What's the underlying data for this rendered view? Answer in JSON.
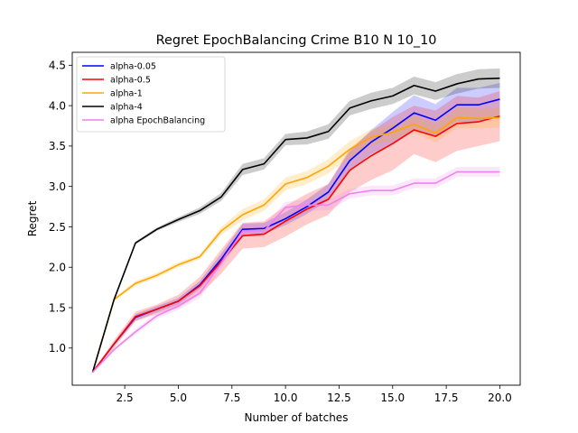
{
  "chart_data": {
    "type": "line",
    "title": "Regret EpochBalancing Crime B10 N 10_10",
    "xlabel": "Number of batches",
    "ylabel": "Regret",
    "xlim": [
      0.05,
      20.95
    ],
    "ylim": [
      0.54,
      4.66
    ],
    "xticks": [
      2.5,
      5.0,
      7.5,
      10.0,
      12.5,
      15.0,
      17.5,
      20.0
    ],
    "yticks": [
      1.0,
      1.5,
      2.0,
      2.5,
      3.0,
      3.5,
      4.0,
      4.5
    ],
    "grid": false,
    "legend_position": "upper-left",
    "x": [
      1,
      2,
      3,
      4,
      5,
      6,
      7,
      8,
      9,
      10,
      11,
      12,
      13,
      14,
      15,
      16,
      17,
      18,
      19,
      20
    ],
    "series": [
      {
        "name": "alpha-0.05",
        "color": "#0000ff",
        "values": [
          0.7,
          1.05,
          1.38,
          1.48,
          1.58,
          1.78,
          2.1,
          2.47,
          2.48,
          2.6,
          2.75,
          2.93,
          3.32,
          3.55,
          3.72,
          3.91,
          3.82,
          4.01,
          4.01,
          4.08
        ],
        "lower": [
          0.7,
          1.03,
          1.34,
          1.44,
          1.54,
          1.73,
          2.03,
          2.4,
          2.41,
          2.52,
          2.66,
          2.83,
          3.2,
          3.4,
          3.52,
          3.69,
          3.62,
          3.8,
          3.8,
          3.88
        ],
        "upper": [
          0.7,
          1.07,
          1.42,
          1.52,
          1.62,
          1.83,
          2.17,
          2.54,
          2.55,
          2.68,
          2.84,
          3.03,
          3.44,
          3.7,
          3.92,
          4.13,
          4.02,
          4.22,
          4.22,
          4.28
        ]
      },
      {
        "name": "alpha-0.5",
        "color": "#ff0000",
        "values": [
          0.7,
          1.05,
          1.39,
          1.48,
          1.58,
          1.77,
          2.07,
          2.39,
          2.41,
          2.57,
          2.72,
          2.84,
          3.2,
          3.38,
          3.53,
          3.7,
          3.62,
          3.78,
          3.8,
          3.87
        ],
        "lower": [
          0.7,
          1.0,
          1.33,
          1.42,
          1.5,
          1.66,
          1.92,
          2.23,
          2.25,
          2.38,
          2.53,
          2.65,
          2.93,
          3.08,
          3.2,
          3.4,
          3.3,
          3.44,
          3.5,
          3.56
        ],
        "upper": [
          0.7,
          1.1,
          1.45,
          1.54,
          1.66,
          1.88,
          2.22,
          2.55,
          2.57,
          2.76,
          2.91,
          3.03,
          3.47,
          3.68,
          3.86,
          4.0,
          3.94,
          4.12,
          4.1,
          4.18
        ]
      },
      {
        "name": "alpha-1",
        "color": "#ffa500",
        "values": [
          0.7,
          1.6,
          1.8,
          1.9,
          2.03,
          2.13,
          2.45,
          2.65,
          2.77,
          3.03,
          3.11,
          3.25,
          3.46,
          3.61,
          3.67,
          3.77,
          3.66,
          3.85,
          3.84,
          3.85
        ],
        "lower": [
          0.7,
          1.58,
          1.77,
          1.87,
          2.0,
          2.1,
          2.4,
          2.58,
          2.7,
          2.95,
          3.03,
          3.16,
          3.36,
          3.51,
          3.57,
          3.66,
          3.55,
          3.72,
          3.72,
          3.73
        ],
        "upper": [
          0.7,
          1.62,
          1.83,
          1.93,
          2.06,
          2.16,
          2.5,
          2.72,
          2.84,
          3.11,
          3.19,
          3.34,
          3.56,
          3.71,
          3.77,
          3.88,
          3.77,
          3.98,
          3.96,
          3.97
        ]
      },
      {
        "name": "alpha-4",
        "color": "#000000",
        "values": [
          0.7,
          1.6,
          2.3,
          2.47,
          2.59,
          2.7,
          2.87,
          3.21,
          3.28,
          3.58,
          3.6,
          3.68,
          3.97,
          4.06,
          4.12,
          4.25,
          4.18,
          4.27,
          4.33,
          4.34
        ],
        "lower": [
          0.7,
          1.58,
          2.28,
          2.45,
          2.56,
          2.66,
          2.82,
          3.14,
          3.21,
          3.51,
          3.52,
          3.59,
          3.88,
          3.96,
          4.02,
          4.14,
          4.07,
          4.15,
          4.21,
          4.22
        ],
        "upper": [
          0.7,
          1.62,
          2.32,
          2.49,
          2.62,
          2.74,
          2.92,
          3.28,
          3.35,
          3.65,
          3.68,
          3.77,
          4.06,
          4.16,
          4.22,
          4.36,
          4.29,
          4.39,
          4.45,
          4.46
        ]
      },
      {
        "name": "alpha EpochBalancing",
        "color": "#ee82ee",
        "values": [
          0.7,
          0.98,
          1.2,
          1.4,
          1.52,
          1.68,
          2.05,
          2.45,
          2.45,
          2.74,
          2.77,
          2.77,
          2.91,
          2.95,
          2.95,
          3.04,
          3.04,
          3.18,
          3.18,
          3.18
        ],
        "lower": [
          0.7,
          0.96,
          1.17,
          1.36,
          1.47,
          1.62,
          1.98,
          2.38,
          2.38,
          2.67,
          2.7,
          2.7,
          2.85,
          2.89,
          2.89,
          2.98,
          2.98,
          3.12,
          3.12,
          3.12
        ],
        "upper": [
          0.7,
          1.0,
          1.23,
          1.44,
          1.57,
          1.74,
          2.12,
          2.52,
          2.52,
          2.81,
          2.84,
          2.84,
          2.97,
          3.01,
          3.01,
          3.1,
          3.1,
          3.24,
          3.24,
          3.24
        ]
      }
    ]
  }
}
